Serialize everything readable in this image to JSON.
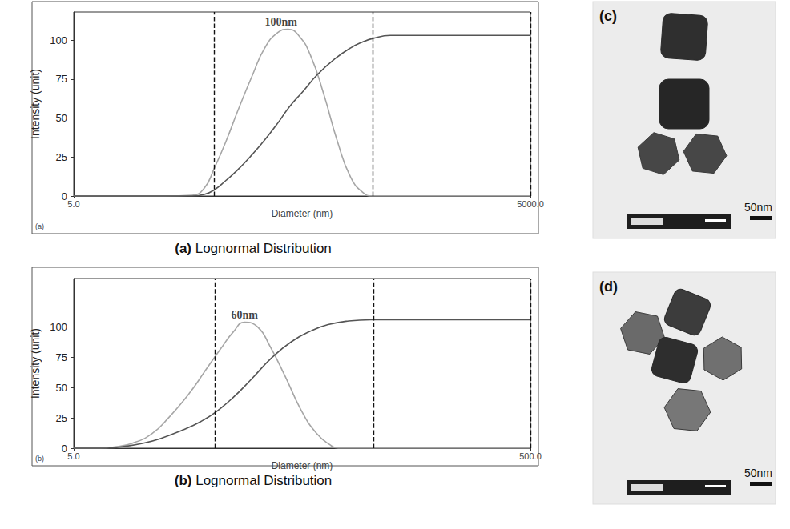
{
  "chart_data": [
    {
      "type": "line",
      "panel": "(a)",
      "caption": "Lognormal Distribution",
      "annotation": {
        "text": "100nm",
        "x": 115,
        "y": 107
      },
      "x_label": "Diameter (nm)",
      "y_label": "Intensity (unit)",
      "log": "x",
      "xlim": [
        5,
        5000
      ],
      "xticks": [
        {
          "value": 5,
          "label": "5.0"
        },
        {
          "value": 5000,
          "label": "5000.0"
        }
      ],
      "ylim": [
        0,
        118
      ],
      "yticks": [
        0,
        25,
        50,
        75,
        100
      ],
      "grid": false,
      "markers": [
        42,
        459,
        5000
      ],
      "series": [
        {
          "color": "#a6a6a6",
          "x": [
            5,
            20,
            30,
            36,
            42,
            50,
            60,
            75,
            90,
            110,
            128,
            150,
            180,
            220,
            270,
            330,
            400,
            460,
            1000,
            5000
          ],
          "values": [
            0,
            0,
            0.5,
            5,
            18,
            35,
            55,
            78,
            95,
            105,
            107,
            103,
            90,
            65,
            35,
            12,
            2,
            0,
            0,
            0
          ]
        },
        {
          "color": "#555555",
          "x": [
            5,
            30,
            36,
            42,
            50,
            60,
            75,
            90,
            110,
            130,
            160,
            200,
            260,
            330,
            400,
            460,
            600,
            5000
          ],
          "values": [
            0,
            0,
            1,
            4,
            10,
            17,
            27,
            36,
            47,
            57,
            67,
            78,
            88,
            95,
            99,
            101,
            103,
            103
          ]
        }
      ]
    },
    {
      "type": "line",
      "panel": "(b)",
      "caption": "Lognormal Distribution",
      "annotation": {
        "text": "60nm",
        "x": 28,
        "y": 104
      },
      "x_label": "Diameter (nm)",
      "y_label": "Intensity (unit)",
      "log": "x",
      "xlim": [
        5,
        500
      ],
      "xticks": [
        {
          "value": 5,
          "label": "5.0"
        },
        {
          "value": 500,
          "label": "500.0"
        }
      ],
      "ylim": [
        0,
        140
      ],
      "yticks": [
        0,
        25,
        50,
        75,
        100
      ],
      "grid": false,
      "markers": [
        20.7,
        103,
        500
      ],
      "series": [
        {
          "color": "#a6a6a6",
          "x": [
            5,
            6.5,
            7.5,
            9,
            11,
            13,
            16,
            19,
            22,
            25,
            28,
            32,
            36,
            42,
            50,
            58,
            66,
            72,
            100,
            500
          ],
          "values": [
            0,
            0,
            1,
            4,
            12,
            25,
            45,
            65,
            82,
            96,
            104,
            100,
            85,
            60,
            30,
            12,
            3,
            0,
            0,
            0
          ]
        },
        {
          "color": "#555555",
          "x": [
            5,
            7,
            8,
            10,
            12,
            15,
            18,
            21,
            25,
            30,
            37,
            45,
            55,
            65,
            80,
            100,
            150,
            500
          ],
          "values": [
            0,
            0,
            1,
            4,
            8,
            15,
            22,
            30,
            42,
            57,
            75,
            88,
            97,
            102,
            105,
            106,
            106,
            106
          ]
        }
      ]
    }
  ],
  "images": [
    {
      "panel": "(c)",
      "scale_bar": "50nm"
    },
    {
      "panel": "(d)",
      "scale_bar": "50nm"
    }
  ]
}
